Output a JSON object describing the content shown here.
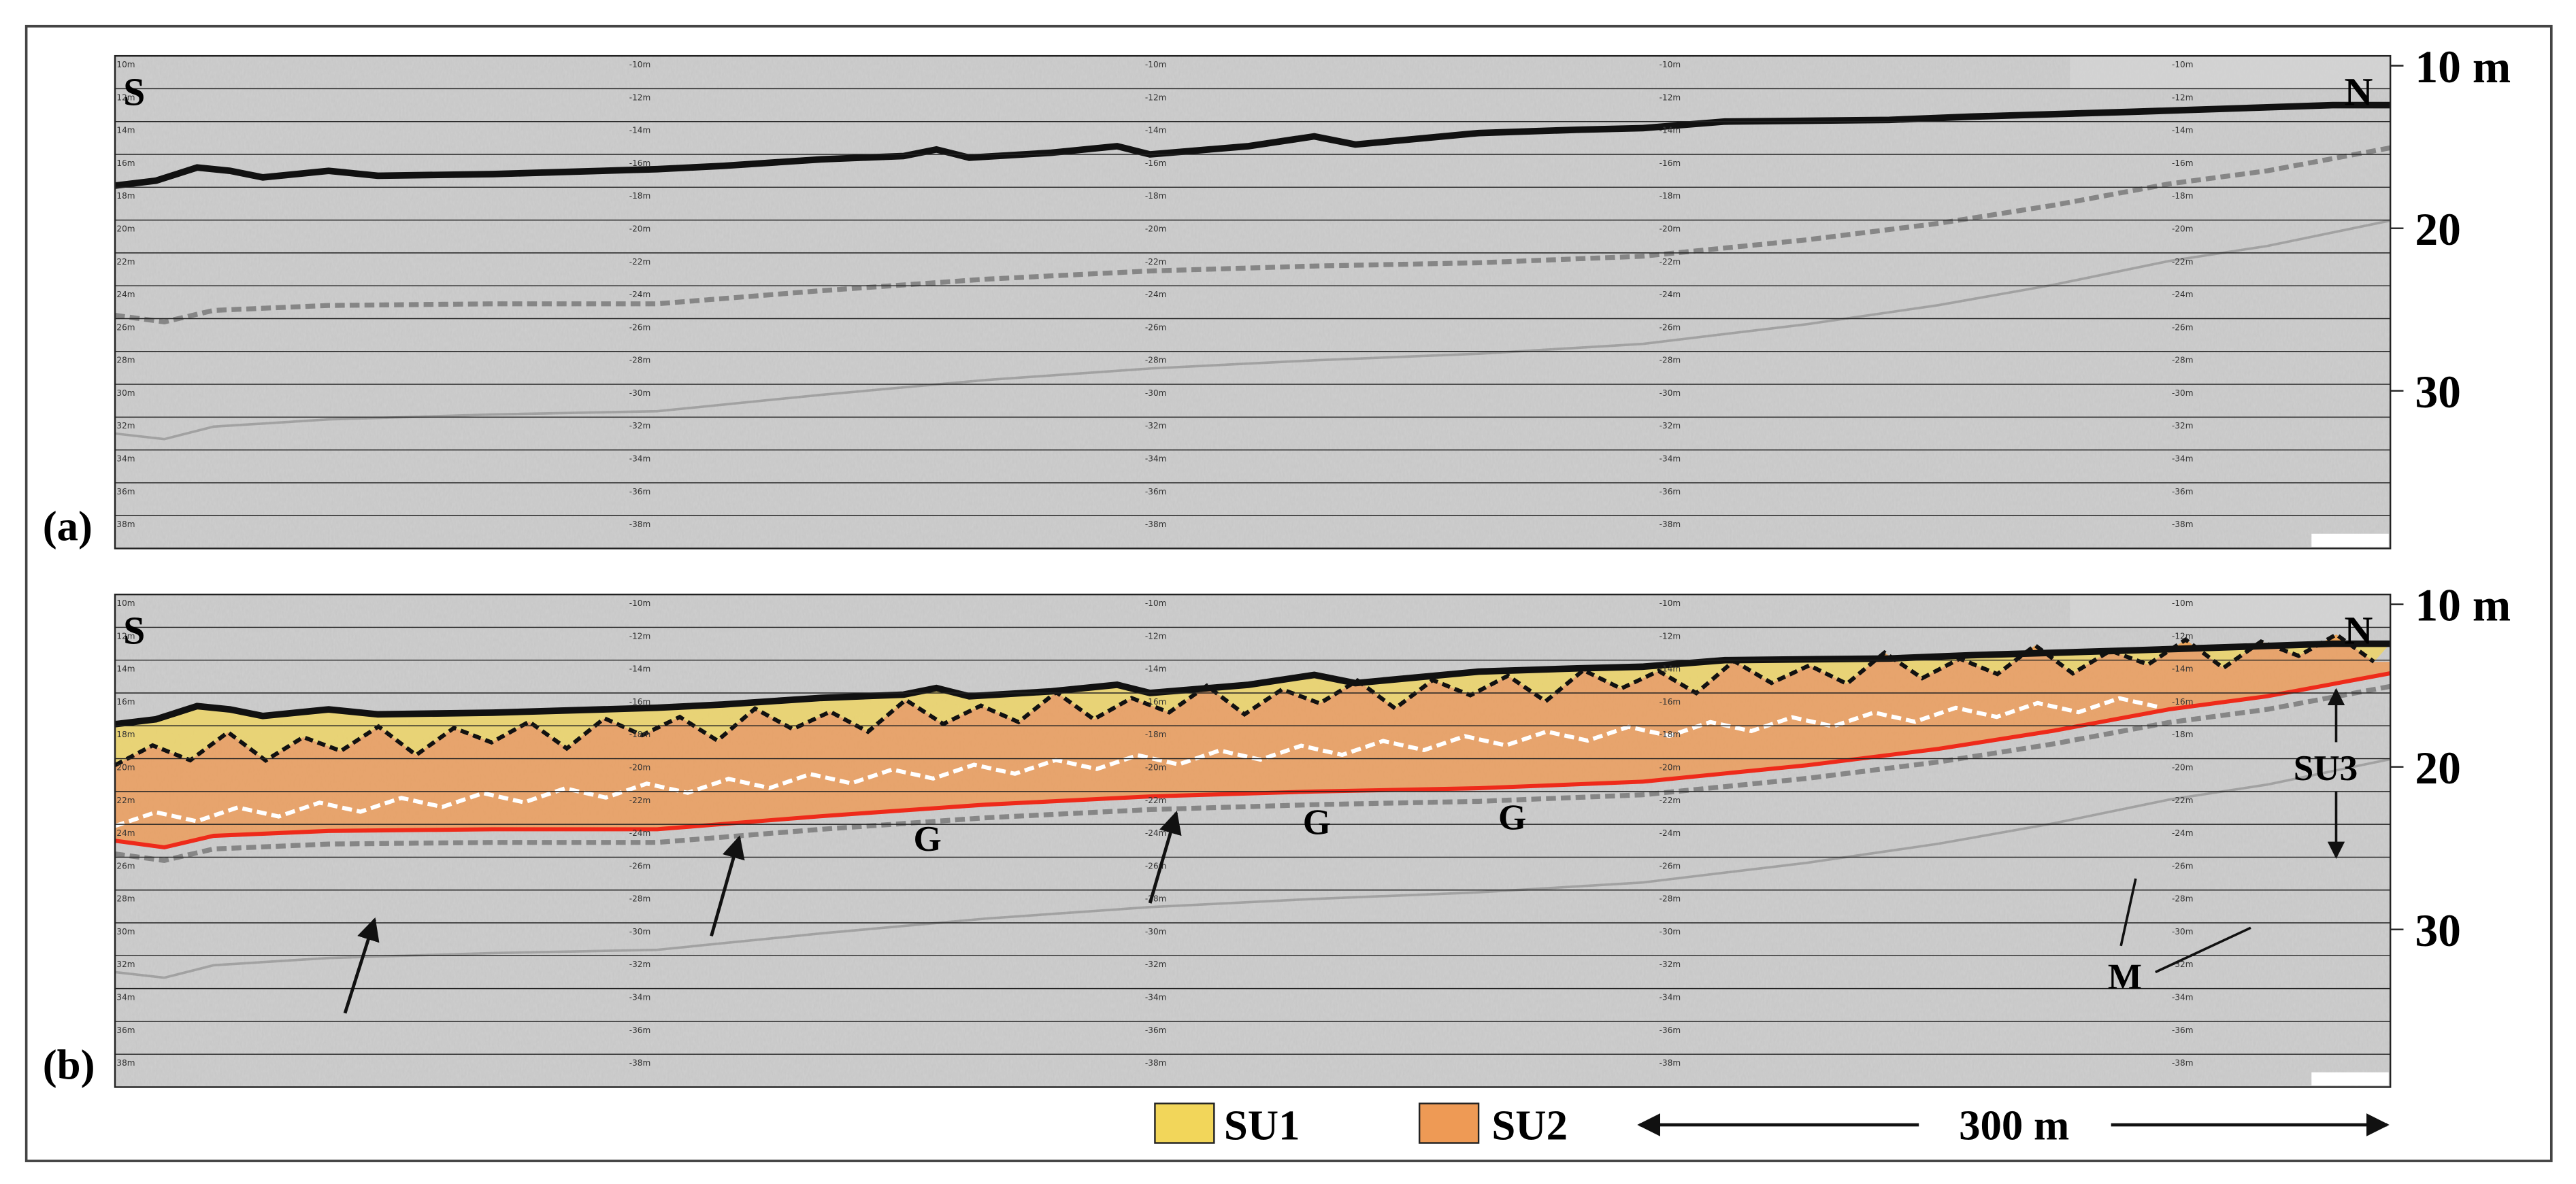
{
  "panels": [
    {
      "label": "(a)",
      "south": "S",
      "north": "N",
      "depth_ticks": [
        {
          "value": 10,
          "label": "10 m"
        },
        20,
        30
      ]
    },
    {
      "label": "(b)",
      "south": "S",
      "north": "N",
      "depth_ticks": [
        {
          "value": 10,
          "label": "10 m"
        },
        20,
        30
      ],
      "annotations": {
        "gravel": [
          "G",
          "G",
          "G"
        ],
        "unit": "SU3",
        "multiple": "M"
      }
    }
  ],
  "grid_labels": {
    "edge": [
      "10m",
      "12m",
      "14m",
      "16m",
      "18m",
      "20m",
      "22m",
      "24m",
      "26m",
      "28m",
      "30m",
      "32m",
      "34m",
      "36m",
      "38m"
    ],
    "inner": [
      "-10m",
      "-12m",
      "-14m",
      "-16m",
      "-18m",
      "-20m",
      "-22m",
      "-24m",
      "-26m",
      "-28m",
      "-30m",
      "-32m",
      "-34m",
      "-36m",
      "-38m"
    ]
  },
  "legend": [
    {
      "label": "SU1",
      "color": "#f2d65a"
    },
    {
      "label": "SU2",
      "color": "#ee9a55"
    }
  ],
  "scale_bar": "300 m"
}
